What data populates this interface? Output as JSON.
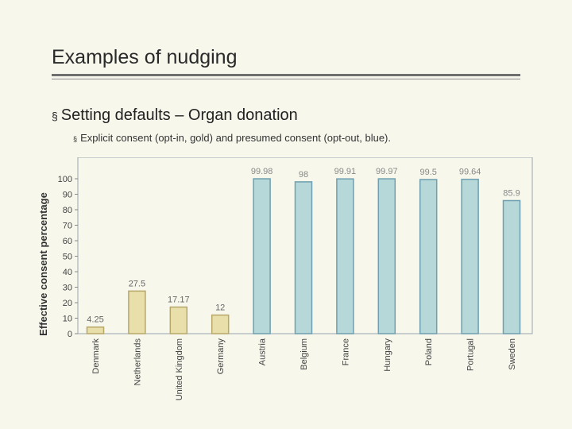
{
  "slide": {
    "title": "Examples of nudging",
    "bullet_level1": "Setting defaults – Organ donation",
    "bullet_level2": "Explicit consent (opt-in, gold) and presumed consent (opt-out, blue).",
    "bullet_marker": "§"
  },
  "colors": {
    "opt_in_fill": "#e8dfaa",
    "opt_in_stroke": "#b7a86a",
    "opt_out_fill": "#b7d8d8",
    "opt_out_stroke": "#6f9fb0",
    "opt_in_label": "#666666",
    "opt_out_label": "#888888",
    "frame": "#9aa6b0"
  },
  "chart_data": {
    "type": "bar",
    "ylabel": "Effective consent percentage",
    "ylim": [
      0,
      100
    ],
    "yticks": [
      0,
      10,
      20,
      30,
      40,
      50,
      60,
      70,
      80,
      90,
      100
    ],
    "grid": false,
    "categories": [
      "Denmark",
      "Netherlands",
      "United Kingdom",
      "Germany",
      "Austria",
      "Belgium",
      "France",
      "Hungary",
      "Poland",
      "Portugal",
      "Sweden"
    ],
    "values": [
      4.25,
      27.5,
      17.17,
      12,
      99.98,
      98,
      99.91,
      99.97,
      99.5,
      99.64,
      85.9
    ],
    "value_labels": [
      "4.25",
      "27.5",
      "17.17",
      "12",
      "99.98",
      "98",
      "99.91",
      "99.97",
      "99.5",
      "99.64",
      "85.9"
    ],
    "consent_type": [
      "opt-in",
      "opt-in",
      "opt-in",
      "opt-in",
      "opt-out",
      "opt-out",
      "opt-out",
      "opt-out",
      "opt-out",
      "opt-out",
      "opt-out"
    ]
  }
}
